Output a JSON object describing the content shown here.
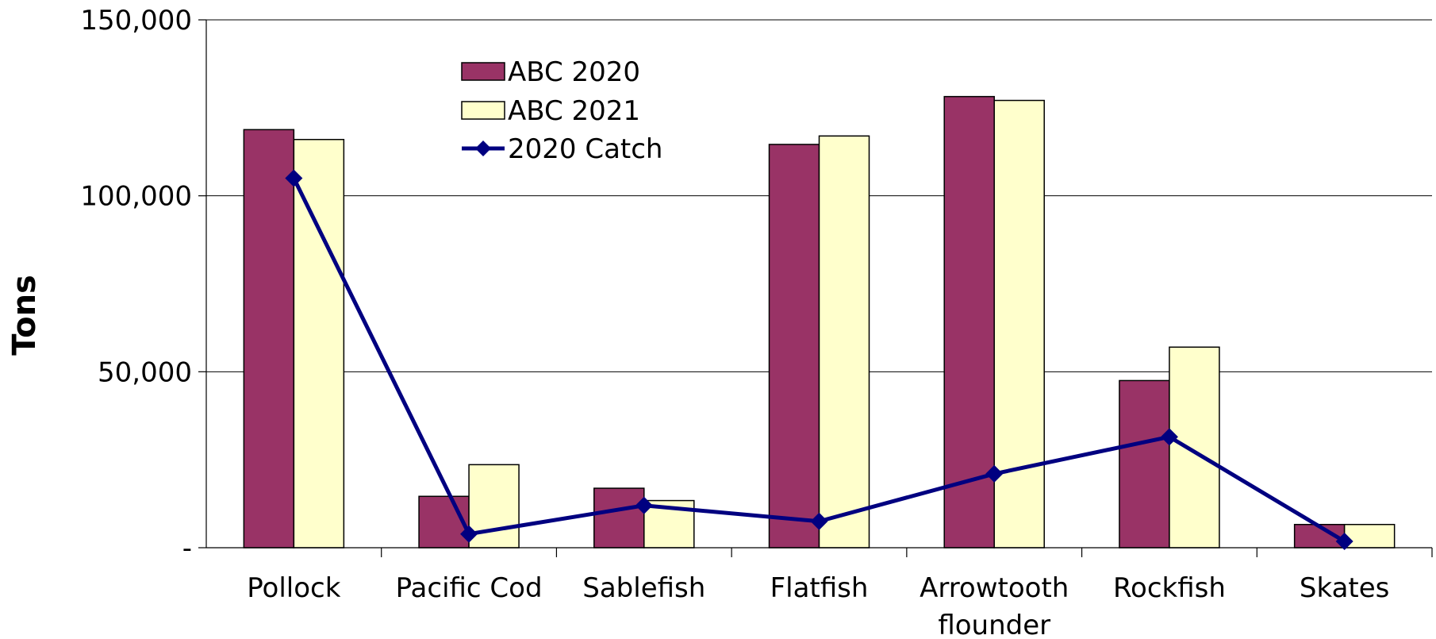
{
  "chart_data": {
    "type": "bar",
    "title": "",
    "xlabel": "",
    "ylabel": "Tons",
    "ylim": [
      0,
      150000
    ],
    "yticks": [
      {
        "value": 0,
        "label": "-"
      },
      {
        "value": 50000,
        "label": "50,000"
      },
      {
        "value": 100000,
        "label": "100,000"
      },
      {
        "value": 150000,
        "label": "150,000"
      }
    ],
    "categories": [
      "Pollock",
      "Pacific Cod",
      "Sablefish",
      "Flatfish",
      "Arrowtooth flounder",
      "Rockfish",
      "Skates"
    ],
    "category_lines": [
      [
        "Pollock"
      ],
      [
        "Pacific Cod"
      ],
      [
        "Sablefish"
      ],
      [
        "Flatfish"
      ],
      [
        "Arrowtooth",
        "flounder"
      ],
      [
        "Rockfish"
      ],
      [
        "Skates"
      ]
    ],
    "grid": true,
    "legend_position": "top-center",
    "series": [
      {
        "name": "ABC 2020",
        "kind": "bar",
        "color": "#993366",
        "values": [
          118800,
          14600,
          16900,
          114600,
          128200,
          47500,
          6600
        ]
      },
      {
        "name": "ABC 2021",
        "kind": "bar",
        "color": "#ffffcc",
        "values": [
          116000,
          23600,
          13400,
          117000,
          127100,
          57000,
          6600
        ]
      },
      {
        "name": "2020 Catch",
        "kind": "line",
        "color": "#000080",
        "values": [
          105000,
          3900,
          12000,
          7500,
          21000,
          31500,
          1800
        ]
      }
    ]
  }
}
